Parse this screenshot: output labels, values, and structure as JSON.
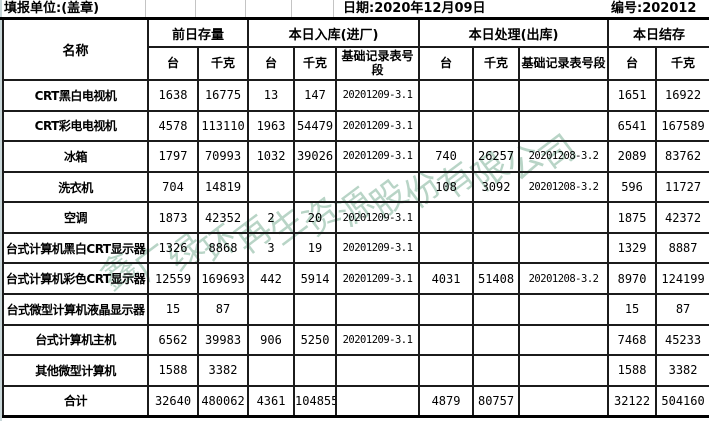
{
  "topbar": {
    "unit_label": "填报单位:(盖章)",
    "date_label": "日期:2020年12月09日",
    "serial_label": "编号:202012"
  },
  "table": {
    "name_header": "名称",
    "groups": [
      {
        "label": "前日存量"
      },
      {
        "label": "本日入库(进厂)"
      },
      {
        "label": "本日处理(出库)"
      },
      {
        "label": "本日结存"
      }
    ],
    "sub": [
      "台",
      "千克",
      "台",
      "千克",
      "基础记录表号段",
      "台",
      "千克",
      "基础记录表号段",
      "台",
      "千克"
    ],
    "rows": [
      [
        "CRT黑白电视机",
        "1638",
        "16775",
        "13",
        "147",
        "20201209-3.1",
        "",
        "",
        "",
        "1651",
        "16922"
      ],
      [
        "CRT彩电电视机",
        "4578",
        "113110",
        "1963",
        "54479",
        "20201209-3.1",
        "",
        "",
        "",
        "6541",
        "167589"
      ],
      [
        "冰箱",
        "1797",
        "70993",
        "1032",
        "39026",
        "20201209-3.1",
        "740",
        "26257",
        "20201208-3.2",
        "2089",
        "83762"
      ],
      [
        "洗衣机",
        "704",
        "14819",
        "",
        "",
        "",
        "108",
        "3092",
        "20201208-3.2",
        "596",
        "11727"
      ],
      [
        "空调",
        "1873",
        "42352",
        "2",
        "20",
        "20201209-3.1",
        "",
        "",
        "",
        "1875",
        "42372"
      ],
      [
        "台式计算机黑白CRT显示器",
        "1326",
        "8868",
        "3",
        "19",
        "20201209-3.1",
        "",
        "",
        "",
        "1329",
        "8887"
      ],
      [
        "台式计算机彩色CRT显示器",
        "12559",
        "169693",
        "442",
        "5914",
        "20201209-3.1",
        "4031",
        "51408",
        "20201208-3.2",
        "8970",
        "124199"
      ],
      [
        "台式微型计算机液晶显示器",
        "15",
        "87",
        "",
        "",
        "",
        "",
        "",
        "",
        "15",
        "87"
      ],
      [
        "台式计算机主机",
        "6562",
        "39983",
        "906",
        "5250",
        "20201209-3.1",
        "",
        "",
        "",
        "7468",
        "45233"
      ],
      [
        "其他微型计算机",
        "1588",
        "3382",
        "",
        "",
        "",
        "",
        "",
        "",
        "1588",
        "3382"
      ],
      [
        "合计",
        "32640",
        "480062",
        "4361",
        "104855",
        "",
        "4879",
        "80757",
        "",
        "32122",
        "504160"
      ]
    ]
  },
  "watermark": {
    "text": "鑫广绿环再生资源股份有限公司",
    "color": "#7fb298"
  },
  "colors": {
    "page_background": "#c9d7d9",
    "sheet_background": "#ffffff",
    "grid_line": "#1b1b1b"
  }
}
